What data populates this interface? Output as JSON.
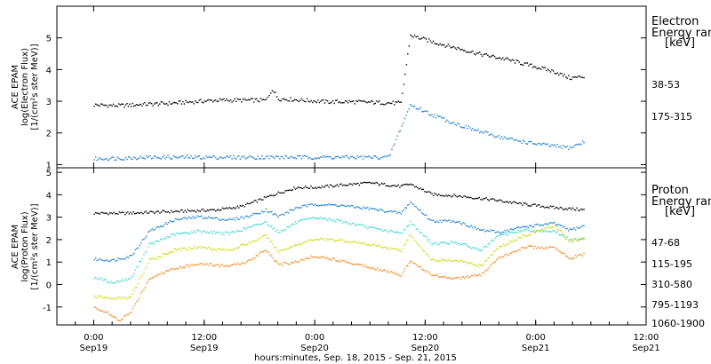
{
  "chart_data": [
    {
      "type": "scatter",
      "panel": "electron",
      "ylabel": [
        "ACE EPAM",
        "log(Electron Flux)",
        "[1/(cm²s ster MeV)]"
      ],
      "ylim": [
        0.9,
        6.0
      ],
      "yticks": [
        1,
        2,
        3,
        4,
        5
      ],
      "legend_title": [
        "Electron",
        "Energy ran",
        "[keV]"
      ],
      "series": [
        {
          "name": "38-53",
          "color": "#000000",
          "points": [
            [
              0,
              2.9
            ],
            [
              8,
              2.88
            ],
            [
              16,
              2.92
            ],
            [
              24,
              2.95
            ],
            [
              32,
              3.0
            ],
            [
              40,
              3.05
            ],
            [
              48,
              3.05
            ],
            [
              56,
              3.05
            ],
            [
              58,
              3.4
            ],
            [
              60,
              3.1
            ],
            [
              68,
              3.05
            ],
            [
              76,
              3.0
            ],
            [
              84,
              3.0
            ],
            [
              92,
              2.98
            ],
            [
              100,
              2.95
            ],
            [
              103,
              5.1
            ],
            [
              110,
              4.9
            ],
            [
              118,
              4.7
            ],
            [
              126,
              4.5
            ],
            [
              134,
              4.35
            ],
            [
              142,
              4.15
            ],
            [
              150,
              3.95
            ],
            [
              155,
              3.75
            ],
            [
              160,
              3.8
            ]
          ]
        },
        {
          "name": "175-315",
          "color": "#1f7fd6",
          "points": [
            [
              0,
              1.2
            ],
            [
              8,
              1.22
            ],
            [
              16,
              1.25
            ],
            [
              24,
              1.25
            ],
            [
              32,
              1.25
            ],
            [
              40,
              1.25
            ],
            [
              48,
              1.25
            ],
            [
              56,
              1.25
            ],
            [
              64,
              1.25
            ],
            [
              72,
              1.25
            ],
            [
              80,
              1.25
            ],
            [
              88,
              1.25
            ],
            [
              96,
              1.25
            ],
            [
              103,
              2.9
            ],
            [
              110,
              2.6
            ],
            [
              118,
              2.3
            ],
            [
              126,
              2.05
            ],
            [
              134,
              1.85
            ],
            [
              142,
              1.7
            ],
            [
              150,
              1.6
            ],
            [
              155,
              1.55
            ],
            [
              160,
              1.75
            ]
          ]
        }
      ]
    },
    {
      "type": "scatter",
      "panel": "proton",
      "ylabel": [
        "ACE EPAM",
        "log(Proton Flux)",
        "[1/(cm²s ster MeV)]"
      ],
      "xlabel": "hours:minutes, Sep. 18, 2015 - Sep. 21, 2015",
      "ylim": [
        -1.8,
        5.2
      ],
      "yticks": [
        -1,
        0,
        1,
        2,
        3,
        4,
        5
      ],
      "legend_title": [
        "Proton",
        "Energy ran",
        "[keV]"
      ],
      "series": [
        {
          "name": "47-68",
          "color": "#000000",
          "points": [
            [
              0,
              3.2
            ],
            [
              10,
              3.2
            ],
            [
              20,
              3.25
            ],
            [
              30,
              3.3
            ],
            [
              40,
              3.35
            ],
            [
              48,
              3.5
            ],
            [
              54,
              3.8
            ],
            [
              60,
              4.1
            ],
            [
              66,
              4.35
            ],
            [
              72,
              4.35
            ],
            [
              80,
              4.45
            ],
            [
              90,
              4.55
            ],
            [
              100,
              4.4
            ],
            [
              103,
              4.5
            ],
            [
              110,
              4.05
            ],
            [
              120,
              3.95
            ],
            [
              130,
              3.8
            ],
            [
              140,
              3.6
            ],
            [
              150,
              3.45
            ],
            [
              160,
              3.35
            ]
          ]
        },
        {
          "name": "115-195",
          "color": "#1f7fd6",
          "points": [
            [
              0,
              1.15
            ],
            [
              6,
              1.1
            ],
            [
              12,
              1.3
            ],
            [
              18,
              2.4
            ],
            [
              26,
              2.9
            ],
            [
              34,
              3.05
            ],
            [
              44,
              2.9
            ],
            [
              50,
              3.05
            ],
            [
              56,
              3.35
            ],
            [
              60,
              3.05
            ],
            [
              66,
              3.45
            ],
            [
              72,
              3.6
            ],
            [
              80,
              3.55
            ],
            [
              90,
              3.4
            ],
            [
              100,
              3.2
            ],
            [
              103,
              3.7
            ],
            [
              110,
              2.85
            ],
            [
              118,
              2.85
            ],
            [
              126,
              2.45
            ],
            [
              132,
              2.35
            ],
            [
              140,
              2.6
            ],
            [
              150,
              2.75
            ],
            [
              155,
              2.45
            ],
            [
              160,
              2.65
            ]
          ]
        },
        {
          "name": "310-580",
          "color": "#3fd8d0",
          "points": [
            [
              0,
              0.35
            ],
            [
              6,
              0.1
            ],
            [
              12,
              0.3
            ],
            [
              18,
              1.8
            ],
            [
              26,
              2.25
            ],
            [
              34,
              2.4
            ],
            [
              44,
              2.3
            ],
            [
              50,
              2.55
            ],
            [
              56,
              2.8
            ],
            [
              60,
              2.35
            ],
            [
              66,
              2.8
            ],
            [
              72,
              3.0
            ],
            [
              80,
              2.85
            ],
            [
              90,
              2.55
            ],
            [
              100,
              2.3
            ],
            [
              103,
              2.8
            ],
            [
              110,
              1.85
            ],
            [
              118,
              1.9
            ],
            [
              126,
              1.55
            ],
            [
              132,
              2.2
            ],
            [
              140,
              2.45
            ],
            [
              150,
              2.4
            ],
            [
              155,
              2.0
            ],
            [
              160,
              2.1
            ]
          ]
        },
        {
          "name": "795-1193",
          "color": "#c8dc10",
          "points": [
            [
              0,
              -0.5
            ],
            [
              6,
              -0.6
            ],
            [
              12,
              -0.55
            ],
            [
              18,
              1.1
            ],
            [
              26,
              1.55
            ],
            [
              34,
              1.7
            ],
            [
              44,
              1.55
            ],
            [
              50,
              1.85
            ],
            [
              56,
              2.2
            ],
            [
              60,
              1.5
            ],
            [
              66,
              1.8
            ],
            [
              72,
              2.05
            ],
            [
              80,
              2.0
            ],
            [
              90,
              1.8
            ],
            [
              100,
              1.55
            ],
            [
              103,
              2.25
            ],
            [
              110,
              1.1
            ],
            [
              118,
              1.1
            ],
            [
              126,
              0.85
            ],
            [
              132,
              1.7
            ],
            [
              140,
              2.2
            ],
            [
              150,
              2.65
            ],
            [
              155,
              1.95
            ],
            [
              160,
              2.1
            ]
          ]
        },
        {
          "name": "1060-1900",
          "color": "#f28a20",
          "points": [
            [
              0,
              -1.0
            ],
            [
              4,
              -1.2
            ],
            [
              8,
              -1.6
            ],
            [
              12,
              -1.2
            ],
            [
              18,
              0.3
            ],
            [
              26,
              0.75
            ],
            [
              34,
              0.95
            ],
            [
              44,
              0.85
            ],
            [
              50,
              1.05
            ],
            [
              56,
              1.6
            ],
            [
              60,
              0.9
            ],
            [
              66,
              1.05
            ],
            [
              72,
              1.3
            ],
            [
              80,
              1.1
            ],
            [
              90,
              0.8
            ],
            [
              100,
              0.45
            ],
            [
              103,
              1.1
            ],
            [
              110,
              0.45
            ],
            [
              118,
              0.3
            ],
            [
              126,
              0.45
            ],
            [
              132,
              1.2
            ],
            [
              140,
              1.7
            ],
            [
              150,
              1.65
            ],
            [
              155,
              1.2
            ],
            [
              160,
              1.4
            ]
          ]
        }
      ]
    }
  ],
  "x_axis": {
    "range_hours": [
      -12,
      180
    ],
    "ticks": [
      {
        "h": 0,
        "l1": "0:00",
        "l2": "Sep19"
      },
      {
        "h": 36,
        "l1": "12:00",
        "l2": "Sep19"
      },
      {
        "h": 72,
        "l1": "0:00",
        "l2": "Sep20"
      },
      {
        "h": 108,
        "l1": "12:00",
        "l2": "Sep20"
      },
      {
        "h": 144,
        "l1": "0:00",
        "l2": "Sep21"
      },
      {
        "h": 180,
        "l1": "12:00",
        "l2": "Sep21"
      }
    ]
  }
}
